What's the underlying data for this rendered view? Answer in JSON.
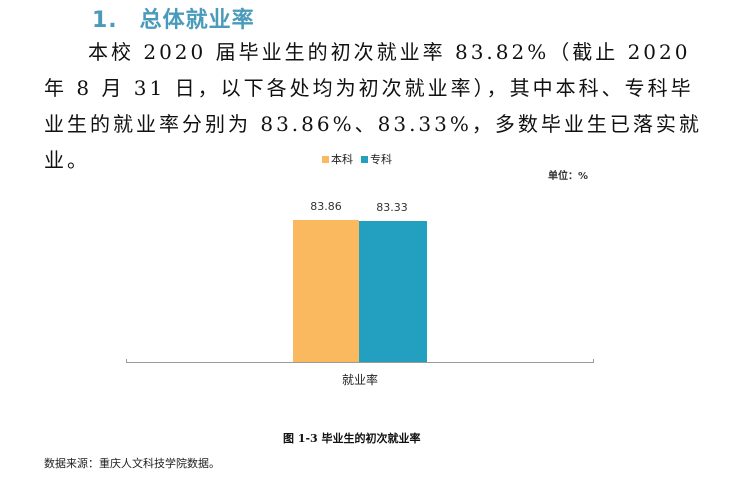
{
  "heading": {
    "number": "1.",
    "title": "总体就业率"
  },
  "paragraph": "本校 2020 届毕业生的初次就业率 83.82%（截止 2020 年 8 月 31 日，以下各处均为初次就业率），其中本科、专科毕业生的就业率分别为 83.86%、83.33%，多数毕业生已落实就业。",
  "chart_meta": {
    "unit_label": "单位：%"
  },
  "colors": {
    "heading": "#4a9bbb",
    "benke": "#fbb95f",
    "zhuanke": "#23a0c0",
    "axis": "#9a9a9a"
  },
  "chart_data": {
    "type": "bar",
    "title": "图 1-3 毕业生的初次就业率",
    "categories": [
      "就业率"
    ],
    "series": [
      {
        "name": "本科",
        "values": [
          83.86
        ],
        "color": "#fbb95f"
      },
      {
        "name": "专科",
        "values": [
          83.33
        ],
        "color": "#23a0c0"
      }
    ],
    "xlabel": "",
    "ylabel": "",
    "unit": "%",
    "legend_position": "top",
    "grid": false,
    "data_labels": [
      "83.86",
      "83.33"
    ]
  },
  "caption": "图 1-3 毕业生的初次就业率",
  "source": "数据来源：重庆人文科技学院数据。"
}
